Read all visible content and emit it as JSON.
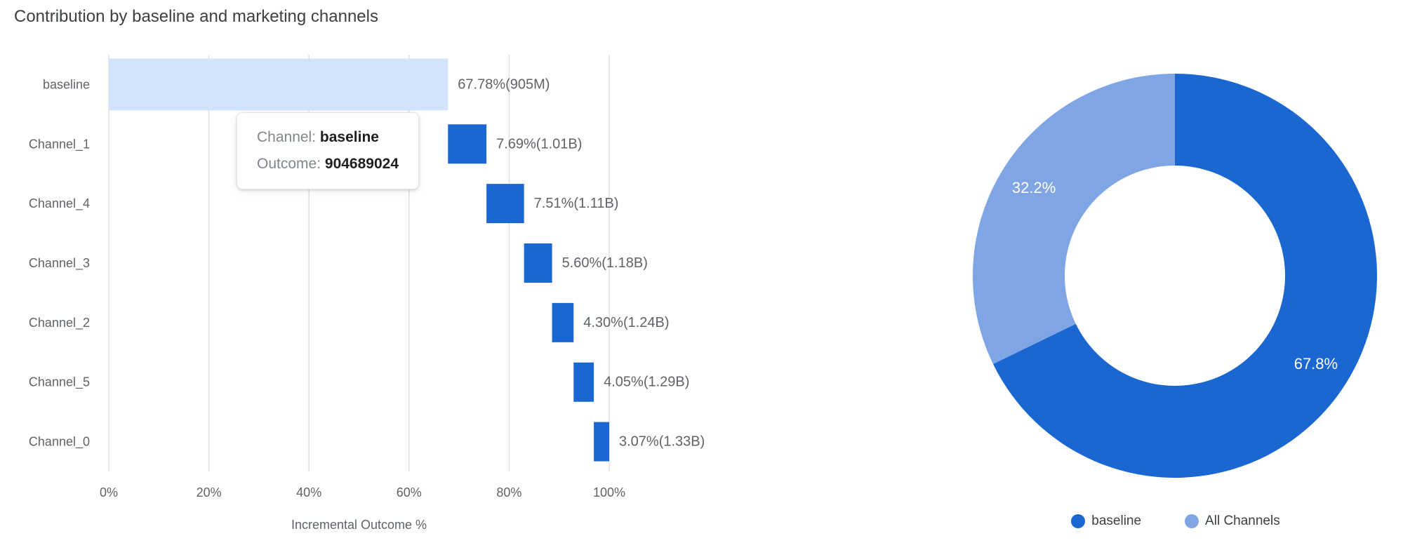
{
  "title": "Contribution by baseline and marketing channels",
  "colors": {
    "primary_blue": "#1A67D2",
    "light_blue": "#7FA5E5",
    "baseline_bar": "#D2E3FC",
    "grid": "#E0E0E0",
    "axis_text": "#5F6368",
    "value_label_text": "#5F6368",
    "title_text": "#3C4043",
    "tooltip_label": "#80868B",
    "tooltip_value": "#1F1F1F",
    "legend_text": "#3C4043",
    "donut_label_text": "#FFFFFF"
  },
  "tooltip": {
    "channel_label": "Channel:",
    "channel_value": "baseline",
    "outcome_label": "Outcome:",
    "outcome_value": "904689024"
  },
  "chart_data": [
    {
      "type": "bar",
      "variant": "horizontal-waterfall",
      "title": "Contribution by baseline and marketing channels",
      "xlabel": "Incremental Outcome %",
      "xlim": [
        0,
        100
      ],
      "x_ticks": [
        "0%",
        "20%",
        "40%",
        "60%",
        "80%",
        "100%"
      ],
      "grid": true,
      "categories": [
        "baseline",
        "Channel_1",
        "Channel_4",
        "Channel_3",
        "Channel_2",
        "Channel_5",
        "Channel_0"
      ],
      "segments": [
        {
          "category": "baseline",
          "start_pct": 0,
          "end_pct": 67.78,
          "share_pct": 67.78,
          "cumulative_outcome": "905M",
          "label": "67.78%(905M)",
          "color_key": "baseline_bar"
        },
        {
          "category": "Channel_1",
          "start_pct": 67.78,
          "end_pct": 75.47,
          "share_pct": 7.69,
          "cumulative_outcome": "1.01B",
          "label": "7.69%(1.01B)",
          "color_key": "primary_blue"
        },
        {
          "category": "Channel_4",
          "start_pct": 75.47,
          "end_pct": 82.98,
          "share_pct": 7.51,
          "cumulative_outcome": "1.11B",
          "label": "7.51%(1.11B)",
          "color_key": "primary_blue"
        },
        {
          "category": "Channel_3",
          "start_pct": 82.98,
          "end_pct": 88.58,
          "share_pct": 5.6,
          "cumulative_outcome": "1.18B",
          "label": "5.60%(1.18B)",
          "color_key": "primary_blue"
        },
        {
          "category": "Channel_2",
          "start_pct": 88.58,
          "end_pct": 92.88,
          "share_pct": 4.3,
          "cumulative_outcome": "1.24B",
          "label": "4.30%(1.24B)",
          "color_key": "primary_blue"
        },
        {
          "category": "Channel_5",
          "start_pct": 92.88,
          "end_pct": 96.93,
          "share_pct": 4.05,
          "cumulative_outcome": "1.29B",
          "label": "4.05%(1.29B)",
          "color_key": "primary_blue"
        },
        {
          "category": "Channel_0",
          "start_pct": 96.93,
          "end_pct": 100,
          "share_pct": 3.07,
          "cumulative_outcome": "1.33B",
          "label": "3.07%(1.33B)",
          "color_key": "primary_blue"
        }
      ]
    },
    {
      "type": "pie",
      "variant": "donut",
      "legend_position": "bottom",
      "slices": [
        {
          "label": "baseline",
          "value": 67.8,
          "display": "67.8%",
          "color_key": "primary_blue"
        },
        {
          "label": "All Channels",
          "value": 32.2,
          "display": "32.2%",
          "color_key": "light_blue"
        }
      ]
    }
  ]
}
